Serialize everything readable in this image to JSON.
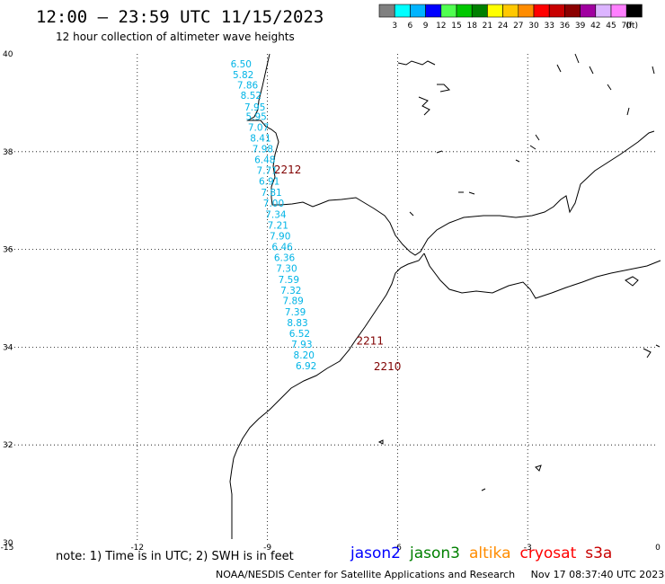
{
  "title": "12:00 – 23:59 UTC 11/15/2023",
  "subtitle": "12 hour collection of altimeter wave heights",
  "legend": {
    "unit": "(ft)",
    "labels": [
      "3",
      "6",
      "9",
      "12",
      "15",
      "18",
      "21",
      "24",
      "27",
      "30",
      "33",
      "36",
      "39",
      "42",
      "45",
      "70"
    ],
    "colors": [
      "#808080",
      "#00ffff",
      "#00b4ff",
      "#0000ff",
      "#50ff50",
      "#00c800",
      "#008000",
      "#ffff00",
      "#ffc800",
      "#ff8c00",
      "#ff0000",
      "#c80000",
      "#8b0000",
      "#a000a0",
      "#dcb4ff",
      "#ff80ff",
      "#000000"
    ]
  },
  "axes": {
    "lon_ticks": [
      {
        "v": -15,
        "t": "-15"
      },
      {
        "v": -12,
        "t": "-12"
      },
      {
        "v": -9,
        "t": "-9"
      },
      {
        "v": -6,
        "t": "-6"
      },
      {
        "v": -3,
        "t": "-3"
      },
      {
        "v": 0,
        "t": "0"
      }
    ],
    "lat_ticks": [
      {
        "v": 40,
        "t": "40"
      },
      {
        "v": 38,
        "t": "38"
      },
      {
        "v": 36,
        "t": "36"
      },
      {
        "v": 34,
        "t": "34"
      },
      {
        "v": 32,
        "t": "32"
      },
      {
        "v": 30,
        "t": "30"
      }
    ]
  },
  "track": {
    "color": "#00b4e6",
    "points": [
      {
        "lon": -9.85,
        "lat": 39.8,
        "v": "6.50"
      },
      {
        "lon": -9.8,
        "lat": 39.58,
        "v": "5.82"
      },
      {
        "lon": -9.7,
        "lat": 39.37,
        "v": "7.86"
      },
      {
        "lon": -9.62,
        "lat": 39.15,
        "v": "8.52"
      },
      {
        "lon": -9.53,
        "lat": 38.92,
        "v": "7.95"
      },
      {
        "lon": -9.5,
        "lat": 38.72,
        "v": "5.95"
      },
      {
        "lon": -9.45,
        "lat": 38.5,
        "v": "7.07"
      },
      {
        "lon": -9.4,
        "lat": 38.28,
        "v": "8.41"
      },
      {
        "lon": -9.35,
        "lat": 38.06,
        "v": "7.98"
      },
      {
        "lon": -9.3,
        "lat": 37.84,
        "v": "6.48"
      },
      {
        "lon": -9.25,
        "lat": 37.62,
        "v": "7.71"
      },
      {
        "lon": -9.2,
        "lat": 37.4,
        "v": "6.91"
      },
      {
        "lon": -9.15,
        "lat": 37.17,
        "v": "7.81"
      },
      {
        "lon": -9.1,
        "lat": 36.95,
        "v": "7.00"
      },
      {
        "lon": -9.05,
        "lat": 36.72,
        "v": "7.34"
      },
      {
        "lon": -9.0,
        "lat": 36.5,
        "v": "7.21"
      },
      {
        "lon": -8.95,
        "lat": 36.28,
        "v": "7.90"
      },
      {
        "lon": -8.9,
        "lat": 36.06,
        "v": "6.46"
      },
      {
        "lon": -8.85,
        "lat": 35.84,
        "v": "6.36"
      },
      {
        "lon": -8.8,
        "lat": 35.62,
        "v": "7.30"
      },
      {
        "lon": -8.75,
        "lat": 35.39,
        "v": "7.59"
      },
      {
        "lon": -8.7,
        "lat": 35.17,
        "v": "7.32"
      },
      {
        "lon": -8.65,
        "lat": 34.95,
        "v": "7.89"
      },
      {
        "lon": -8.6,
        "lat": 34.72,
        "v": "7.39"
      },
      {
        "lon": -8.55,
        "lat": 34.5,
        "v": "8.83"
      },
      {
        "lon": -8.5,
        "lat": 34.28,
        "v": "6.52"
      },
      {
        "lon": -8.45,
        "lat": 34.06,
        "v": "7.93"
      },
      {
        "lon": -8.4,
        "lat": 33.84,
        "v": "8.20"
      },
      {
        "lon": -8.35,
        "lat": 33.62,
        "v": "6.92"
      }
    ]
  },
  "cycle_labels": [
    {
      "t": "2212",
      "lon": -8.85,
      "lat": 37.63
    },
    {
      "t": "2211",
      "lon": -6.95,
      "lat": 34.13
    },
    {
      "t": "2210",
      "lon": -6.55,
      "lat": 33.6
    }
  ],
  "cycle_label_color": "#800000",
  "note": "note:  1) Time is in UTC;  2) SWH is in feet",
  "satellites": [
    {
      "name": "jason2",
      "color": "#0000ff"
    },
    {
      "name": "jason3",
      "color": "#008000"
    },
    {
      "name": "altika",
      "color": "#ff8c00"
    },
    {
      "name": "cryosat",
      "color": "#ff0000"
    },
    {
      "name": "s3a",
      "color": "#c80000"
    }
  ],
  "credit": "NOAA/NESDIS Center for Satellite Applications and Research",
  "timestamp": "Nov 17 08:37:40 UTC 2023"
}
